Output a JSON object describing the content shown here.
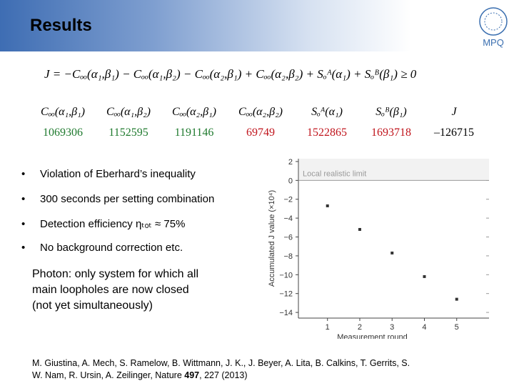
{
  "header": {
    "title": "Results",
    "logo": "MPQ"
  },
  "equation": "J = −Cₒₒ(α₁,β₁) − Cₒₒ(α₁,β₂) − Cₒₒ(α₂,β₁) + Cₒₒ(α₂,β₂) + Sₒᴬ(α₁) + Sₒᴮ(β₁) ≥ 0",
  "table": {
    "header": [
      "Cₒₒ(α₁,β₁)",
      "Cₒₒ(α₁,β₂)",
      "Cₒₒ(α₂,β₁)",
      "Cₒₒ(α₂,β₂)",
      "Sₒᴬ(α₁)",
      "Sₒᴮ(β₁)",
      "J"
    ],
    "values": [
      "1069306",
      "1152595",
      "1191146",
      "69749",
      "1522865",
      "1693718",
      "–126715"
    ],
    "colors": [
      "#1f7a2e",
      "#1f7a2e",
      "#1f7a2e",
      "#c0141c",
      "#c0141c",
      "#c0141c",
      "#000000"
    ]
  },
  "bullets": [
    "Violation of Eberhard’s inequality",
    "300 seconds per setting combination",
    "Detection efficiency ηₜₒₜ ≈ 75%",
    "No background correction etc."
  ],
  "paragraph": [
    "Photon: only system for which all",
    "main loopholes are now closed",
    "(not yet simultaneously)"
  ],
  "citation": {
    "before": "M. Giustina, A. Mech, S. Ramelow, B. Wittmann, J. K., J. Beyer, A. Lita, B. Calkins, T. Gerrits, S. W. Nam, R. Ursin, A. Zeilinger, Nature ",
    "bold": "497",
    "after": ", 227 (2013)"
  },
  "chart_data": {
    "type": "scatter",
    "x_label": "Measurement round",
    "y_label": "Accumulated J value (×10⁴)",
    "x": [
      1,
      2,
      3,
      4,
      5
    ],
    "values": [
      -2.7,
      -5.2,
      -7.7,
      -10.2,
      -12.6
    ],
    "color": "#333333",
    "xlim": [
      0.1,
      6
    ],
    "ylim": [
      -14.6,
      2.3
    ],
    "xticks": [
      1,
      2,
      3,
      4,
      5
    ],
    "yticks": [
      2,
      0,
      {
        "value": -2,
        "label": "−2"
      },
      {
        "value": -4,
        "label": "−4"
      },
      {
        "value": -6,
        "label": "−6"
      },
      {
        "value": -8,
        "label": "−8"
      },
      {
        "value": -10,
        "label": "−10"
      },
      {
        "value": -12,
        "label": "−12"
      },
      {
        "value": -14,
        "label": "−14"
      }
    ],
    "annotation": {
      "text": "Local realistic limit",
      "value": 0
    }
  }
}
